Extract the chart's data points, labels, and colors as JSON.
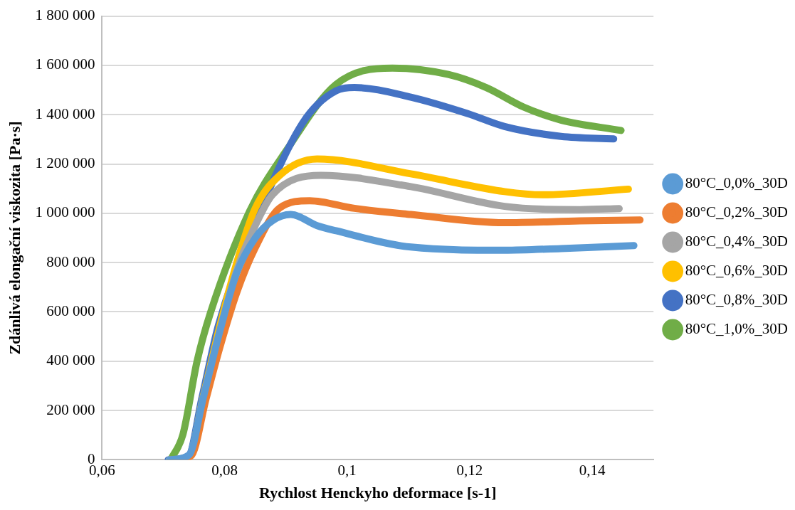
{
  "chart_data": {
    "type": "line",
    "xlabel": "Rychlost Henckyho deformace [s-1]",
    "ylabel": "Zdánlivá elongační viskozita [Pa·s]",
    "xlim": [
      0.06,
      0.15
    ],
    "xticks": [
      {
        "value": 0.06,
        "label": "0,06"
      },
      {
        "value": 0.08,
        "label": "0,08"
      },
      {
        "value": 0.1,
        "label": "0,1"
      },
      {
        "value": 0.12,
        "label": "0,12"
      },
      {
        "value": 0.14,
        "label": "0,14"
      }
    ],
    "ylim": [
      0,
      1800000
    ],
    "yticks": [
      0,
      {
        "value": 200000,
        "label": "200 000"
      },
      {
        "value": 400000,
        "label": "400 000"
      },
      {
        "value": 600000,
        "label": "600 000"
      },
      {
        "value": 800000,
        "label": "800 000"
      },
      {
        "value": 1000000,
        "label": "1 000 000"
      },
      {
        "value": 1200000,
        "label": "1 200 000"
      },
      {
        "value": 1400000,
        "label": "1 400 000"
      },
      {
        "value": 1600000,
        "label": "1 600 000"
      },
      {
        "value": 1800000,
        "label": "1 800 000"
      }
    ],
    "grid": "y",
    "legend": "right",
    "marker": "none",
    "line_style": "solid",
    "series": [
      {
        "name": "80°C_0,0%_30D",
        "color": "#5b9bd5",
        "x": [
          0.071,
          0.0742,
          0.0765,
          0.0792,
          0.082,
          0.085,
          0.0878,
          0.0908,
          0.0951,
          0.0982,
          0.1104,
          0.1257,
          0.1349,
          0.1468
        ],
        "values": [
          0,
          20000,
          250000,
          520000,
          760000,
          900000,
          970000,
          995000,
          950000,
          929000,
          863000,
          850000,
          857000,
          869000
        ]
      },
      {
        "name": "80°C_0,2%_30D",
        "color": "#ed7d31",
        "x": [
          0.0712,
          0.0745,
          0.077,
          0.0792,
          0.082,
          0.085,
          0.089,
          0.0939,
          0.1012,
          0.1104,
          0.1257,
          0.138,
          0.1478
        ],
        "values": [
          0,
          15000,
          250000,
          454000,
          680000,
          860000,
          1022000,
          1051000,
          1020000,
          995000,
          962000,
          969000,
          973000
        ]
      },
      {
        "name": "80°C_0,4%_30D",
        "color": "#a5a5a5",
        "x": [
          0.071,
          0.0742,
          0.0765,
          0.0792,
          0.082,
          0.085,
          0.0878,
          0.0957,
          0.1104,
          0.1257,
          0.138,
          0.1444
        ],
        "values": [
          0,
          15000,
          250000,
          520000,
          770000,
          950000,
          1075000,
          1154000,
          1108000,
          1028000,
          1015000,
          1019000
        ]
      },
      {
        "name": "80°C_0,6%_30D",
        "color": "#ffc000",
        "x": [
          0.071,
          0.0742,
          0.0765,
          0.0792,
          0.082,
          0.085,
          0.089,
          0.0951,
          0.1104,
          0.1257,
          0.1319,
          0.1459
        ],
        "values": [
          0,
          15000,
          255000,
          540000,
          800000,
          1020000,
          1154000,
          1220000,
          1160000,
          1088000,
          1075000,
          1098000
        ]
      },
      {
        "name": "80°C_0,8%_30D",
        "color": "#4472c4",
        "x": [
          0.0708,
          0.0741,
          0.0763,
          0.079,
          0.0841,
          0.0927,
          0.0982,
          0.1012,
          0.1104,
          0.1196,
          0.1257,
          0.1349,
          0.1435
        ],
        "values": [
          0,
          15000,
          251000,
          546000,
          903000,
          1365000,
          1497000,
          1510000,
          1471000,
          1405000,
          1352000,
          1312000,
          1302000
        ]
      },
      {
        "name": "80°C_1,0%_30D",
        "color": "#70ad47",
        "x": [
          0.0712,
          0.0732,
          0.0755,
          0.0777,
          0.0841,
          0.0902,
          0.0982,
          0.1074,
          0.1165,
          0.1227,
          0.1288,
          0.1349,
          0.1447
        ],
        "values": [
          0,
          103000,
          399000,
          597000,
          1009000,
          1259000,
          1523000,
          1589000,
          1563000,
          1510000,
          1431000,
          1378000,
          1336000
        ]
      }
    ]
  }
}
